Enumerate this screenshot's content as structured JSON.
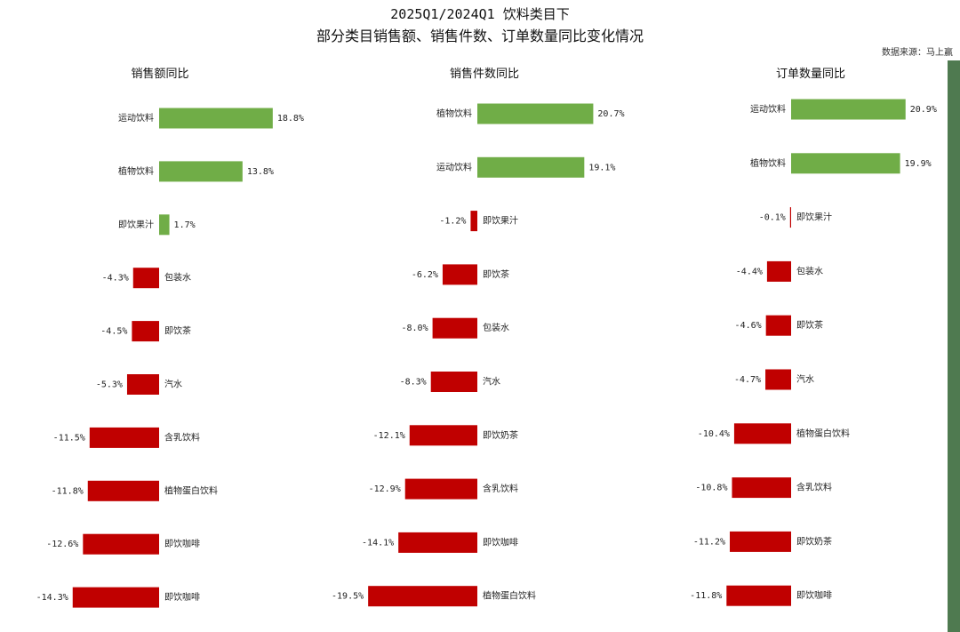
{
  "header": {
    "title_line1": "2025Q1/2024Q1 饮料类目下",
    "title_line2": "部分类目销售额、销售件数、订单数量同比变化情况",
    "source": "数据来源：马上赢"
  },
  "colors": {
    "positive": "#70ad47",
    "negative": "#c00000",
    "sidebar": "#4f7a50"
  },
  "chart_data": [
    {
      "type": "bar",
      "orientation": "horizontal",
      "title": "销售额同比",
      "categories": [
        "运动饮料",
        "植物饮料",
        "即饮果汁",
        "包装水",
        "即饮茶",
        "汽水",
        "含乳饮料",
        "植物蛋白饮料",
        "即饮咖啡",
        "即饮咖啡"
      ],
      "values": [
        18.8,
        13.8,
        1.7,
        -4.3,
        -4.5,
        -5.3,
        -11.5,
        -11.8,
        -12.6,
        -14.3
      ],
      "labels": [
        "18.8%",
        "13.8%",
        "1.7%",
        "-4.3%",
        "-4.5%",
        "-5.3%",
        "-11.5%",
        "-11.8%",
        "-12.6%",
        "-14.3%"
      ],
      "unit": "%"
    },
    {
      "type": "bar",
      "orientation": "horizontal",
      "title": "销售件数同比",
      "categories": [
        "植物饮料",
        "运动饮料",
        "即饮果汁",
        "即饮茶",
        "包装水",
        "汽水",
        "即饮奶茶",
        "含乳饮料",
        "即饮咖啡",
        "植物蛋白饮料"
      ],
      "values": [
        20.7,
        19.1,
        -1.2,
        -6.2,
        -8.0,
        -8.3,
        -12.1,
        -12.9,
        -14.1,
        -19.5
      ],
      "labels": [
        "20.7%",
        "19.1%",
        "-1.2%",
        "-6.2%",
        "-8.0%",
        "-8.3%",
        "-12.1%",
        "-12.9%",
        "-14.1%",
        "-19.5%"
      ],
      "unit": "%"
    },
    {
      "type": "bar",
      "orientation": "horizontal",
      "title": "订单数量同比",
      "categories": [
        "运动饮料",
        "植物饮料",
        "即饮果汁",
        "包装水",
        "即饮茶",
        "汽水",
        "植物蛋白饮料",
        "含乳饮料",
        "即饮奶茶",
        "即饮咖啡"
      ],
      "values": [
        20.9,
        19.9,
        -0.1,
        -4.4,
        -4.6,
        -4.7,
        -10.4,
        -10.8,
        -11.2,
        -11.8
      ],
      "labels": [
        "20.9%",
        "19.9%",
        "-0.1%",
        "-4.4%",
        "-4.6%",
        "-4.7%",
        "-10.4%",
        "-10.8%",
        "-11.2%",
        "-11.8%"
      ],
      "unit": "%"
    }
  ]
}
